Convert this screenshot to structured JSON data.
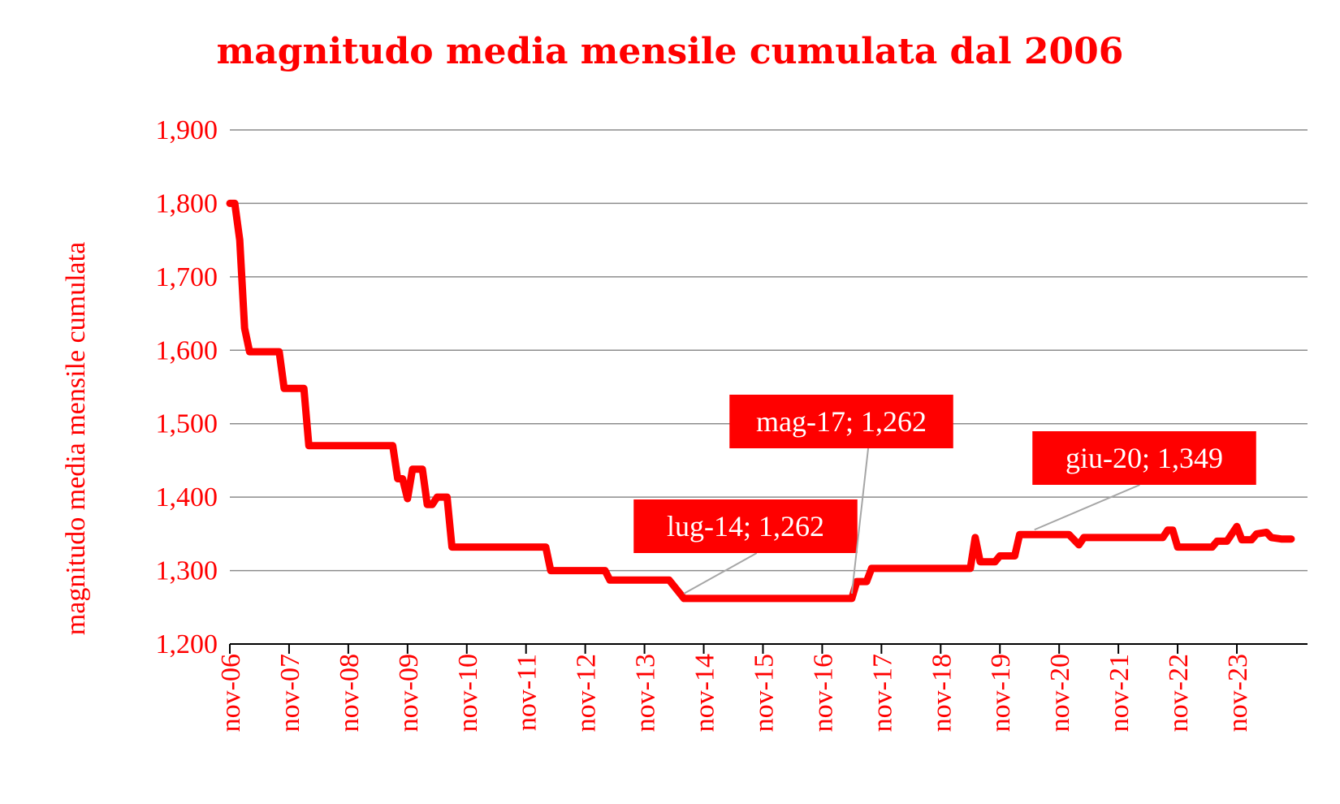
{
  "chart_data": {
    "type": "line",
    "title": "magnitudo media mensile cumulata dal 2006",
    "xlabel": "",
    "ylabel": "magnitudo media mensile cumulata",
    "ylim": [
      1.2,
      1.9
    ],
    "y_ticks": [
      "1,200",
      "1,300",
      "1,400",
      "1,500",
      "1,600",
      "1,700",
      "1,800",
      "1,900"
    ],
    "x_ticks": [
      "nov-06",
      "nov-07",
      "nov-08",
      "nov-09",
      "nov-10",
      "nov-11",
      "nov-12",
      "nov-13",
      "nov-14",
      "nov-15",
      "nov-16",
      "nov-17",
      "nov-18",
      "nov-19",
      "nov-20",
      "nov-21",
      "nov-22",
      "nov-23"
    ],
    "grid": "horizontal",
    "line_color": "#ff0000",
    "series": [
      {
        "points": [
          [
            "2006-11",
            1.8
          ],
          [
            "2006-12",
            1.8
          ],
          [
            "2007-01",
            1.75
          ],
          [
            "2007-02",
            1.63
          ],
          [
            "2007-03",
            1.598
          ],
          [
            "2007-06",
            1.598
          ],
          [
            "2007-09",
            1.598
          ],
          [
            "2007-10",
            1.548
          ],
          [
            "2007-12",
            1.548
          ],
          [
            "2008-02",
            1.548
          ],
          [
            "2008-03",
            1.47
          ],
          [
            "2008-10",
            1.47
          ],
          [
            "2009-06",
            1.47
          ],
          [
            "2009-08",
            1.47
          ],
          [
            "2009-09",
            1.425
          ],
          [
            "2009-10",
            1.425
          ],
          [
            "2009-11",
            1.398
          ],
          [
            "2009-12",
            1.438
          ],
          [
            "2010-02",
            1.438
          ],
          [
            "2010-03",
            1.39
          ],
          [
            "2010-04",
            1.39
          ],
          [
            "2010-05",
            1.4
          ],
          [
            "2010-07",
            1.4
          ],
          [
            "2010-08",
            1.332
          ],
          [
            "2011-06",
            1.332
          ],
          [
            "2012-03",
            1.332
          ],
          [
            "2012-04",
            1.3
          ],
          [
            "2013-03",
            1.3
          ],
          [
            "2013-04",
            1.287
          ],
          [
            "2014-03",
            1.287
          ],
          [
            "2014-04",
            1.287
          ],
          [
            "2014-07",
            1.262
          ],
          [
            "2017-05",
            1.262
          ],
          [
            "2017-06",
            1.285
          ],
          [
            "2017-08",
            1.285
          ],
          [
            "2017-09",
            1.303
          ],
          [
            "2018-06",
            1.303
          ],
          [
            "2019-04",
            1.303
          ],
          [
            "2019-05",
            1.303
          ],
          [
            "2019-06",
            1.345
          ],
          [
            "2019-07",
            1.312
          ],
          [
            "2019-08",
            1.312
          ],
          [
            "2019-10",
            1.312
          ],
          [
            "2019-11",
            1.32
          ],
          [
            "2020-02",
            1.32
          ],
          [
            "2020-03",
            1.349
          ],
          [
            "2020-06",
            1.349
          ],
          [
            "2021-01",
            1.349
          ],
          [
            "2021-03",
            1.335
          ],
          [
            "2021-04",
            1.345
          ],
          [
            "2022-08",
            1.345
          ],
          [
            "2022-09",
            1.355
          ],
          [
            "2022-10",
            1.355
          ],
          [
            "2022-11",
            1.332
          ],
          [
            "2023-06",
            1.332
          ],
          [
            "2023-07",
            1.34
          ],
          [
            "2023-09",
            1.34
          ],
          [
            "2023-11",
            1.36
          ],
          [
            "2023-12",
            1.342
          ],
          [
            "2024-02",
            1.342
          ],
          [
            "2024-03",
            1.35
          ],
          [
            "2024-05",
            1.352
          ],
          [
            "2024-06",
            1.345
          ],
          [
            "2024-08",
            1.343
          ],
          [
            "2024-10",
            1.343
          ]
        ]
      }
    ],
    "annotations": [
      {
        "label": "lug-14; 1,262",
        "x": "2014-07",
        "y": 1.262
      },
      {
        "label": "mag-17; 1,262",
        "x": "2017-05",
        "y": 1.262
      },
      {
        "label": "giu-20; 1,349",
        "x": "2020-06",
        "y": 1.349
      }
    ]
  }
}
